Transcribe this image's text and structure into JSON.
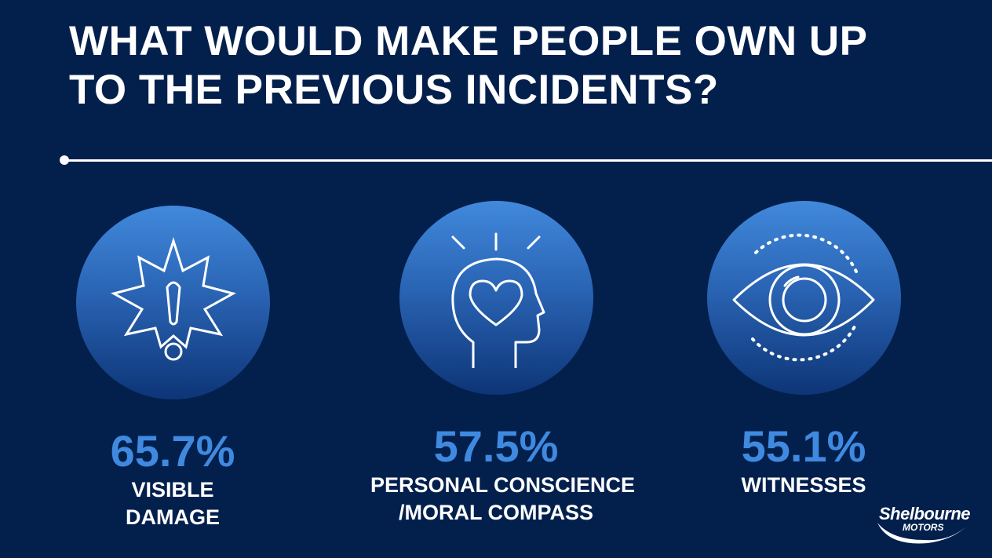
{
  "header": {
    "title_line1": "WHAT WOULD MAKE PEOPLE OWN UP",
    "title_line2": "TO THE PREVIOUS INCIDENTS?"
  },
  "stats": [
    {
      "value": "65.7%",
      "label_line1": "VISIBLE",
      "label_line2": "DAMAGE",
      "icon": "warning-burst-icon"
    },
    {
      "value": "57.5%",
      "label_line1": "PERSONAL CONSCIENCE",
      "label_line2": "/MORAL COMPASS",
      "icon": "head-heart-icon"
    },
    {
      "value": "55.1%",
      "label_line1": "WITNESSES",
      "label_line2": "",
      "icon": "eye-icon"
    }
  ],
  "logo": {
    "brand": "Shelbourne",
    "sub": "MOTORS"
  },
  "colors": {
    "background": "#03204d",
    "accent": "#3f8ae0",
    "text": "#ffffff"
  }
}
